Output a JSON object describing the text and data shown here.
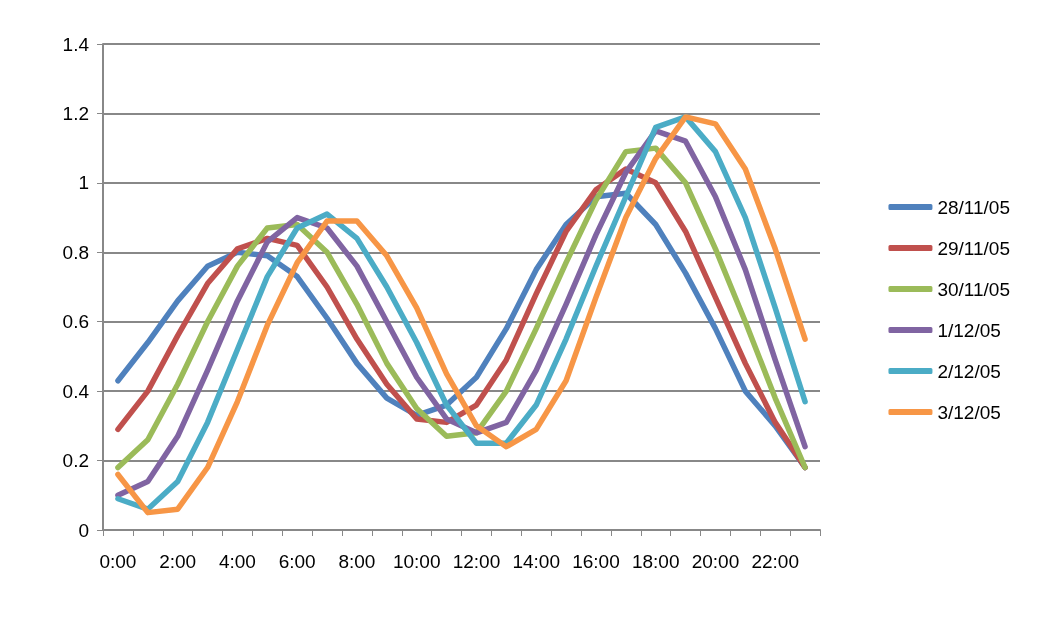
{
  "chart_data": {
    "type": "line",
    "categories": [
      "0:00",
      null,
      "2:00",
      null,
      "4:00",
      null,
      "6:00",
      null,
      "8:00",
      null,
      "10:00",
      null,
      "12:00",
      null,
      "14:00",
      null,
      "16:00",
      null,
      "18:00",
      null,
      "20:00",
      null,
      "22:00",
      null
    ],
    "ylim": [
      0,
      1.4
    ],
    "yticks": [
      0,
      0.2,
      0.4,
      0.6,
      0.8,
      1,
      1.2,
      1.4
    ],
    "grid": "y",
    "legend": "right",
    "marker": "none",
    "line_style": "solid",
    "series": [
      {
        "name": "28/11/05",
        "color": "#4f81bd",
        "values": [
          0.43,
          0.54,
          0.66,
          0.76,
          0.8,
          0.79,
          0.73,
          0.61,
          0.48,
          0.38,
          0.33,
          0.36,
          0.44,
          0.58,
          0.75,
          0.88,
          0.96,
          0.97,
          0.88,
          0.74,
          0.58,
          0.4,
          0.3,
          0.18
        ]
      },
      {
        "name": "29/11/05",
        "color": "#c0504d",
        "values": [
          0.29,
          0.4,
          0.56,
          0.71,
          0.81,
          0.84,
          0.82,
          0.7,
          0.55,
          0.42,
          0.32,
          0.31,
          0.36,
          0.49,
          0.68,
          0.86,
          0.98,
          1.04,
          1.0,
          0.86,
          0.67,
          0.48,
          0.31,
          0.18
        ]
      },
      {
        "name": "30/11/05",
        "color": "#9bbb59",
        "values": [
          0.18,
          0.26,
          0.42,
          0.6,
          0.76,
          0.87,
          0.88,
          0.8,
          0.65,
          0.48,
          0.35,
          0.27,
          0.28,
          0.4,
          0.58,
          0.77,
          0.95,
          1.09,
          1.1,
          1.0,
          0.81,
          0.6,
          0.38,
          0.18
        ]
      },
      {
        "name": "1/12/05",
        "color": "#8064a2",
        "values": [
          0.1,
          0.14,
          0.27,
          0.46,
          0.66,
          0.83,
          0.9,
          0.87,
          0.76,
          0.6,
          0.44,
          0.32,
          0.28,
          0.31,
          0.46,
          0.65,
          0.85,
          1.03,
          1.15,
          1.12,
          0.96,
          0.75,
          0.49,
          0.24
        ]
      },
      {
        "name": "2/12/05",
        "color": "#4bacc6",
        "values": [
          0.09,
          0.06,
          0.14,
          0.31,
          0.52,
          0.73,
          0.87,
          0.91,
          0.84,
          0.7,
          0.54,
          0.36,
          0.25,
          0.25,
          0.36,
          0.55,
          0.76,
          0.96,
          1.16,
          1.19,
          1.09,
          0.9,
          0.64,
          0.37
        ]
      },
      {
        "name": "3/12/05",
        "color": "#f79646",
        "values": [
          0.16,
          0.05,
          0.06,
          0.18,
          0.37,
          0.59,
          0.77,
          0.89,
          0.89,
          0.79,
          0.64,
          0.45,
          0.3,
          0.24,
          0.29,
          0.43,
          0.67,
          0.9,
          1.07,
          1.19,
          1.17,
          1.04,
          0.81,
          0.55
        ]
      }
    ]
  }
}
